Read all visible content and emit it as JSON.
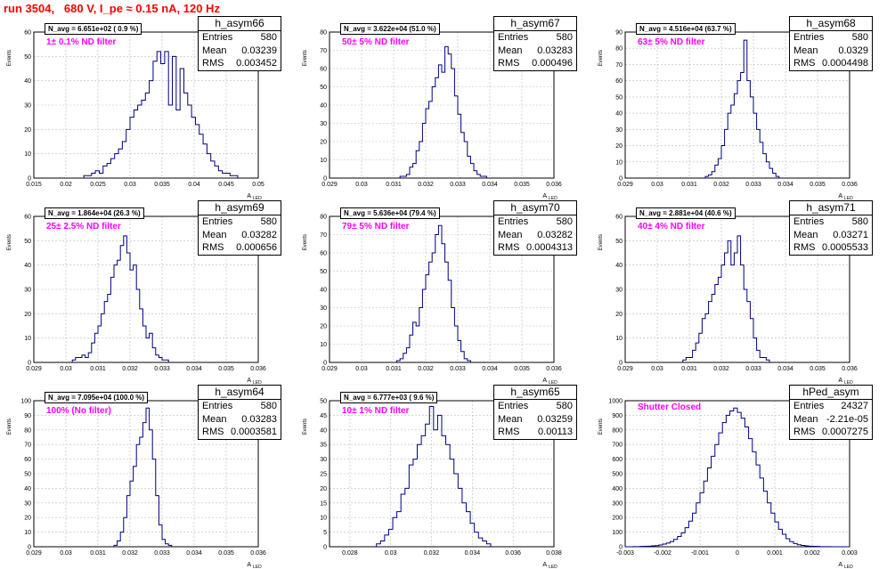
{
  "page_title": "run 3504,   680 V, I_pe ≈ 0.15 nA, 120 Hz",
  "stat_labels": {
    "entries": "Entries",
    "mean": "Mean",
    "rms": "RMS"
  },
  "ylabel": "Events",
  "xlabel": "A",
  "xlabel_sub": "LED",
  "hist_color": "#00007f",
  "filter_color": "#ff00ff",
  "title_color": "#ff0000",
  "chart_data": [
    {
      "type": "bar",
      "title": "h_asym66",
      "navg": "N_avg = 6.651e+02 ( 0.9 %)",
      "filter": "1± 0.1% ND filter",
      "entries": "580",
      "mean": "0.03239",
      "rms": "0.003452",
      "xlim": [
        0.015,
        0.05
      ],
      "ylim": [
        0,
        60
      ],
      "xticks": [
        "0.015",
        "0.02",
        "0.025",
        "0.03",
        "0.035",
        "0.04",
        "0.045",
        "0.05"
      ],
      "yticks": [
        "0",
        "10",
        "20",
        "30",
        "40",
        "50",
        "60"
      ],
      "x_start": 0.0228,
      "bin_width": 0.0006,
      "values": [
        1,
        1,
        2,
        3,
        2,
        5,
        6,
        8,
        10,
        12,
        15,
        20,
        25,
        28,
        30,
        32,
        35,
        40,
        48,
        52,
        47,
        52,
        30,
        50,
        28,
        45,
        35,
        30,
        25,
        22,
        18,
        14,
        10,
        7,
        5,
        3,
        2,
        2,
        1,
        1
      ]
    },
    {
      "type": "bar",
      "title": "h_asym67",
      "navg": "N_avg = 3.622e+04 (51.0 %)",
      "filter": "50± 5% ND filter",
      "entries": "580",
      "mean": "0.03283",
      "rms": "0.000496",
      "xlim": [
        0.029,
        0.036
      ],
      "ylim": [
        0,
        80
      ],
      "xticks": [
        "0.029",
        "0.03",
        "0.031",
        "0.032",
        "0.033",
        "0.034",
        "0.035",
        "0.036"
      ],
      "yticks": [
        "0",
        "10",
        "20",
        "30",
        "40",
        "50",
        "60",
        "70",
        "80"
      ],
      "x_start": 0.0312,
      "bin_width": 0.0001,
      "values": [
        1,
        1,
        2,
        6,
        8,
        15,
        20,
        30,
        38,
        42,
        50,
        55,
        62,
        58,
        72,
        68,
        60,
        45,
        35,
        25,
        20,
        12,
        8,
        4,
        2,
        1,
        1
      ]
    },
    {
      "type": "bar",
      "title": "h_asym68",
      "navg": "N_avg = 4.516e+04 (63.7 %)",
      "filter": "63± 5% ND filter",
      "entries": "580",
      "mean": "0.0329",
      "rms": "0.0004498",
      "xlim": [
        0.029,
        0.036
      ],
      "ylim": [
        0,
        90
      ],
      "xticks": [
        "0.029",
        "0.03",
        "0.031",
        "0.032",
        "0.033",
        "0.034",
        "0.035",
        "0.036"
      ],
      "yticks": [
        "0",
        "10",
        "20",
        "30",
        "40",
        "50",
        "60",
        "70",
        "80",
        "90"
      ],
      "x_start": 0.0315,
      "bin_width": 0.0001,
      "values": [
        1,
        2,
        4,
        8,
        12,
        20,
        30,
        40,
        45,
        52,
        60,
        65,
        85,
        60,
        50,
        40,
        30,
        22,
        15,
        10,
        6,
        3,
        1
      ]
    },
    {
      "type": "bar",
      "title": "h_asym69",
      "navg": "N_avg = 1.864e+04 (26.3 %)",
      "filter": "25± 2.5% ND filter",
      "entries": "580",
      "mean": "0.03282",
      "rms": "0.000656",
      "xlim": [
        0.029,
        0.036
      ],
      "ylim": [
        0,
        60
      ],
      "xticks": [
        "0.029",
        "0.03",
        "0.031",
        "0.032",
        "0.033",
        "0.034",
        "0.035",
        "0.036"
      ],
      "yticks": [
        "0",
        "10",
        "20",
        "30",
        "40",
        "50",
        "60"
      ],
      "x_start": 0.0302,
      "bin_width": 0.0001,
      "values": [
        1,
        2,
        2,
        3,
        2,
        4,
        8,
        12,
        15,
        20,
        25,
        28,
        35,
        40,
        42,
        48,
        52,
        45,
        38,
        40,
        30,
        22,
        15,
        10,
        12,
        6,
        3,
        2,
        1,
        1
      ]
    },
    {
      "type": "bar",
      "title": "h_asym70",
      "navg": "N_avg = 5.636e+04 (79.4 %)",
      "filter": "79± 5% ND filter",
      "entries": "580",
      "mean": "0.03282",
      "rms": "0.0004313",
      "xlim": [
        0.029,
        0.036
      ],
      "ylim": [
        0,
        80
      ],
      "xticks": [
        "0.029",
        "0.03",
        "0.031",
        "0.032",
        "0.033",
        "0.034",
        "0.035",
        "0.036"
      ],
      "yticks": [
        "0",
        "10",
        "20",
        "30",
        "40",
        "50",
        "60",
        "70",
        "80"
      ],
      "x_start": 0.0311,
      "bin_width": 0.0001,
      "values": [
        1,
        2,
        5,
        8,
        15,
        22,
        20,
        30,
        40,
        48,
        55,
        60,
        70,
        75,
        65,
        55,
        45,
        30,
        20,
        12,
        6,
        2,
        1
      ]
    },
    {
      "type": "bar",
      "title": "h_asym71",
      "navg": "N_avg = 2.881e+04 (40.6 %)",
      "filter": "40± 4% ND filter",
      "entries": "580",
      "mean": "0.03271",
      "rms": "0.0005533",
      "xlim": [
        0.029,
        0.036
      ],
      "ylim": [
        0,
        60
      ],
      "xticks": [
        "0.029",
        "0.03",
        "0.031",
        "0.032",
        "0.033",
        "0.034",
        "0.035",
        "0.036"
      ],
      "yticks": [
        "0",
        "10",
        "20",
        "30",
        "40",
        "50",
        "60"
      ],
      "x_start": 0.0308,
      "bin_width": 0.0001,
      "values": [
        1,
        2,
        2,
        5,
        8,
        12,
        18,
        20,
        25,
        28,
        32,
        35,
        40,
        45,
        50,
        40,
        45,
        52,
        40,
        30,
        25,
        18,
        10,
        5,
        2,
        2,
        1
      ]
    },
    {
      "type": "bar",
      "title": "h_asym64",
      "navg": "N_avg = 7.095e+04 (100.0 %)",
      "filter": "100% (No filter)",
      "entries": "580",
      "mean": "0.03283",
      "rms": "0.0003581",
      "xlim": [
        0.029,
        0.036
      ],
      "ylim": [
        0,
        100
      ],
      "xticks": [
        "0.029",
        "0.03",
        "0.031",
        "0.032",
        "0.033",
        "0.034",
        "0.035",
        "0.036"
      ],
      "yticks": [
        "0",
        "10",
        "20",
        "30",
        "40",
        "50",
        "60",
        "70",
        "80",
        "90",
        "100"
      ],
      "x_start": 0.0315,
      "bin_width": 0.0001,
      "values": [
        1,
        4,
        10,
        20,
        35,
        45,
        55,
        70,
        75,
        85,
        95,
        80,
        60,
        35,
        15,
        5,
        2,
        1
      ]
    },
    {
      "type": "bar",
      "title": "h_asym65",
      "navg": "N_avg = 6.777e+03 ( 9.6 %)",
      "filter": "10± 1% ND filter",
      "entries": "580",
      "mean": "0.03259",
      "rms": "0.00113",
      "xlim": [
        0.027,
        0.038
      ],
      "ylim": [
        0,
        50
      ],
      "xticks": [
        "0.028",
        "0.03",
        "0.032",
        "0.034",
        "0.036",
        "0.038"
      ],
      "yticks": [
        "0",
        "5",
        "10",
        "15",
        "20",
        "25",
        "30",
        "35",
        "40",
        "45",
        "50"
      ],
      "x_start": 0.0293,
      "bin_width": 0.0002,
      "values": [
        1,
        2,
        4,
        6,
        10,
        12,
        18,
        20,
        28,
        30,
        35,
        38,
        42,
        48,
        40,
        45,
        38,
        35,
        30,
        25,
        20,
        15,
        12,
        8,
        5,
        3,
        2,
        1
      ]
    },
    {
      "type": "bar",
      "title": "hPed_asym",
      "navg": "",
      "filter": "Shutter Closed",
      "entries": "24327",
      "mean": "-2.21e-05",
      "rms": "0.0007275",
      "xlim": [
        -0.003,
        0.003
      ],
      "ylim": [
        0,
        1000
      ],
      "xticks": [
        "-0.003",
        "-0.002",
        "-0.001",
        "0",
        "0.001",
        "0.002",
        "0.003"
      ],
      "yticks": [
        "0",
        "100",
        "200",
        "300",
        "400",
        "500",
        "600",
        "700",
        "800",
        "900",
        "1000"
      ],
      "x_start": -0.003,
      "bin_width": 0.0001,
      "values": [
        0,
        0,
        1,
        1,
        2,
        3,
        4,
        6,
        8,
        12,
        18,
        25,
        35,
        50,
        70,
        95,
        130,
        175,
        230,
        300,
        370,
        450,
        540,
        620,
        700,
        780,
        850,
        900,
        930,
        950,
        920,
        880,
        820,
        740,
        650,
        560,
        470,
        380,
        300,
        230,
        170,
        120,
        85,
        55,
        35,
        22,
        14,
        9,
        6,
        4,
        3,
        2,
        1,
        1,
        1,
        0,
        0,
        0,
        0,
        0
      ]
    }
  ]
}
